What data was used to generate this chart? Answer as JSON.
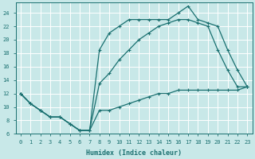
{
  "xlabel": "Humidex (Indice chaleur)",
  "bg_color": "#c8e8e8",
  "grid_color": "#ffffff",
  "line_color": "#1a7070",
  "xlim": [
    -0.5,
    23.5
  ],
  "ylim": [
    6,
    25.5
  ],
  "xticks": [
    0,
    1,
    2,
    3,
    4,
    5,
    6,
    7,
    8,
    9,
    10,
    11,
    12,
    13,
    14,
    15,
    16,
    17,
    18,
    19,
    20,
    21,
    22,
    23
  ],
  "yticks": [
    6,
    8,
    10,
    12,
    14,
    16,
    18,
    20,
    22,
    24
  ],
  "line1_x": [
    0,
    1,
    2,
    3,
    4,
    5,
    6,
    7,
    8,
    9,
    10,
    11,
    12,
    13,
    14,
    15,
    16,
    17,
    18,
    19,
    20,
    21,
    22,
    23
  ],
  "line1_y": [
    12,
    10.5,
    9.5,
    8.5,
    8.5,
    7.5,
    6.5,
    6.5,
    9.5,
    9.5,
    10,
    10.5,
    11,
    11.5,
    12,
    12,
    12.5,
    12.5,
    12.5,
    12.5,
    12.5,
    12.5,
    12.5,
    13
  ],
  "line2_x": [
    0,
    1,
    2,
    3,
    4,
    5,
    6,
    7,
    8,
    9,
    10,
    11,
    12,
    13,
    14,
    15,
    16,
    17,
    18,
    19,
    20,
    21,
    22,
    23
  ],
  "line2_y": [
    12,
    10.5,
    9.5,
    8.5,
    8.5,
    7.5,
    6.5,
    6.5,
    18.5,
    21,
    22,
    23,
    23,
    23,
    23,
    23,
    24,
    25,
    23,
    22.5,
    22,
    18.5,
    15.5,
    13
  ],
  "line3_x": [
    0,
    1,
    2,
    3,
    4,
    5,
    6,
    7,
    8,
    9,
    10,
    11,
    12,
    13,
    14,
    15,
    16,
    17,
    18,
    19,
    20,
    21,
    22,
    23
  ],
  "line3_y": [
    12,
    10.5,
    9.5,
    8.5,
    8.5,
    7.5,
    6.5,
    6.5,
    13.5,
    15,
    17,
    18.5,
    20,
    21,
    22,
    22.5,
    23,
    23,
    22.5,
    22,
    18.5,
    15.5,
    13,
    13
  ]
}
